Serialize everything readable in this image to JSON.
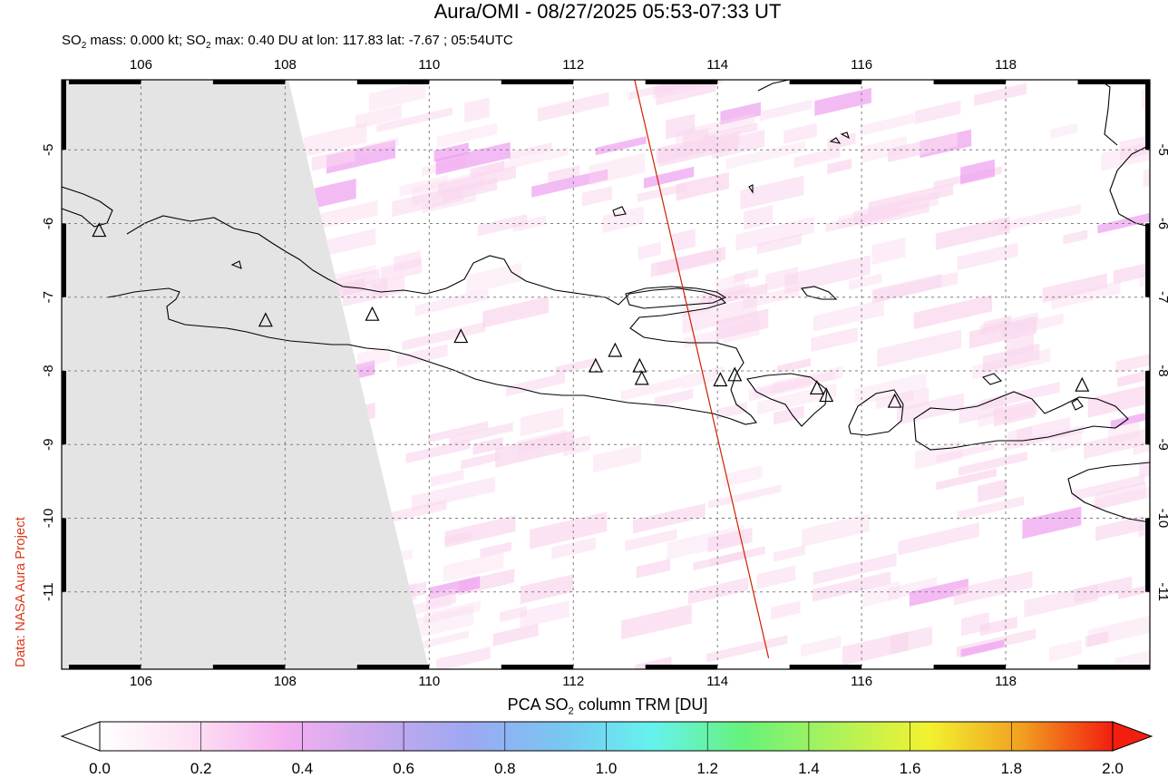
{
  "title": "Aura/OMI - 08/27/2025 05:53-07:33 UT",
  "subtitle_parts": {
    "p1": "SO",
    "p1_sub": "2",
    "p2": " mass: 0.000 kt; SO",
    "p2_sub": "2",
    "p3": " max: 0.40 DU at lon: 117.83 lat: -7.67 ; 05:54UTC"
  },
  "credit": "Data: NASA Aura Project",
  "map": {
    "lon_ticks": [
      "106",
      "108",
      "110",
      "112",
      "114",
      "116",
      "118"
    ],
    "lat_ticks": [
      "-5",
      "-6",
      "-7",
      "-8",
      "-9",
      "-10",
      "-11"
    ],
    "lon_range": [
      104.9,
      120.0
    ],
    "lat_range": [
      -12.05,
      -4.05
    ],
    "volcanoes": [
      {
        "lon": 105.42,
        "lat": -6.1
      },
      {
        "lon": 107.73,
        "lat": -7.32
      },
      {
        "lon": 109.21,
        "lat": -7.24
      },
      {
        "lon": 110.44,
        "lat": -7.54
      },
      {
        "lon": 112.31,
        "lat": -7.94
      },
      {
        "lon": 112.58,
        "lat": -7.73
      },
      {
        "lon": 112.92,
        "lat": -7.94
      },
      {
        "lon": 112.95,
        "lat": -8.11
      },
      {
        "lon": 114.04,
        "lat": -8.13
      },
      {
        "lon": 114.24,
        "lat": -8.06
      },
      {
        "lon": 115.38,
        "lat": -8.24
      },
      {
        "lon": 115.51,
        "lat": -8.34
      },
      {
        "lon": 116.46,
        "lat": -8.42
      },
      {
        "lon": 119.06,
        "lat": -8.2
      }
    ],
    "orbit_line": [
      {
        "lon": 112.85,
        "lat": -4.05
      },
      {
        "lon": 114.71,
        "lat": -11.9
      }
    ],
    "colors": {
      "coast": "#000000",
      "orbit": "#cc2200",
      "nodata": "#e4e4e4",
      "grid": "#808080",
      "so2_low": "#f9d7ee",
      "so2_mid": "#ee9ef0"
    }
  },
  "colorbar": {
    "title_pre": "PCA SO",
    "title_sub": "2",
    "title_post": " column TRM [DU]",
    "ticks": [
      "0.0",
      "0.2",
      "0.4",
      "0.6",
      "0.8",
      "1.0",
      "1.2",
      "1.4",
      "1.6",
      "1.8",
      "2.0"
    ],
    "colors": [
      "#ffffff",
      "#fde0f3",
      "#f4b0f0",
      "#c8a8ee",
      "#9da8f2",
      "#78c6f2",
      "#66f2ee",
      "#66f27a",
      "#aef25a",
      "#f2f230",
      "#f2a020",
      "#f21e10"
    ]
  }
}
